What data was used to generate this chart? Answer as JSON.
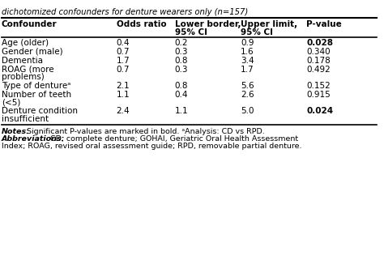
{
  "title": "dichotomized confounders for denture wearers only (n=157)",
  "headers": [
    "Confounder",
    "Odds ratio",
    "Lower border,\n95% CI",
    "Upper limit,\n95% CI",
    "P-value"
  ],
  "rows": [
    {
      "confounder": "Age (older)",
      "odds": "0.4",
      "lower": "0.2",
      "upper": "0.9",
      "pvalue": "0.028",
      "bold_p": true
    },
    {
      "confounder": "Gender (male)",
      "odds": "0.7",
      "lower": "0.3",
      "upper": "1.6",
      "pvalue": "0.340",
      "bold_p": false
    },
    {
      "confounder": "Dementia",
      "odds": "1.7",
      "lower": "0.8",
      "upper": "3.4",
      "pvalue": "0.178",
      "bold_p": false
    },
    {
      "confounder": "ROAG (more\nproblems)",
      "odds": "0.7",
      "lower": "0.3",
      "upper": "1.7",
      "pvalue": "0.492",
      "bold_p": false
    },
    {
      "confounder": "Type of dentureᵃ",
      "odds": "2.1",
      "lower": "0.8",
      "upper": "5.6",
      "pvalue": "0.152",
      "bold_p": false
    },
    {
      "confounder": "Number of teeth\n(<5)",
      "odds": "1.1",
      "lower": "0.4",
      "upper": "2.6",
      "pvalue": "0.915",
      "bold_p": false
    },
    {
      "confounder": "Denture condition\ninsufficient",
      "odds": "2.4",
      "lower": "1.1",
      "upper": "5.0",
      "pvalue": "0.024",
      "bold_p": true
    }
  ],
  "notes_line1": "Notes: Significant P-values are marked in bold. ᵃAnalysis: CD vs RPD.",
  "notes_line2": "Abbreviations: CD, complete denture; GOHAI, Geriatric Oral Health Assessment",
  "notes_line3": "Index; ROAG, revised oral assessment guide; RPD, removable partial denture.",
  "bg_color": "#ffffff",
  "text_color": "#000000",
  "header_fontsize": 7.5,
  "body_fontsize": 7.5,
  "notes_fontsize": 6.8
}
